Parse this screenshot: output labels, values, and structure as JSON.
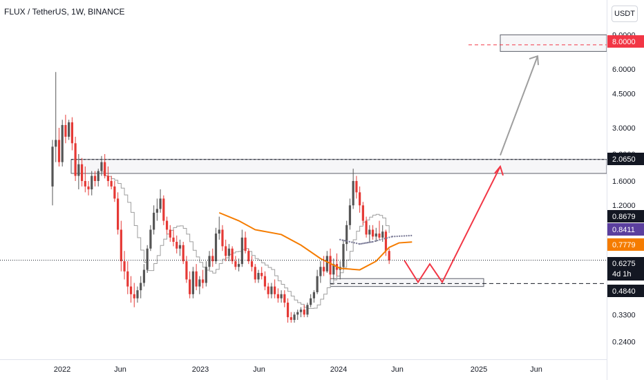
{
  "header": {
    "symbol": "FLUX / TetherUS, 1W, BINANCE"
  },
  "scale_button": "USDT",
  "colors": {
    "up": "#555555",
    "down": "#e53935",
    "ema": "#f57c00",
    "stair": "#9e9e9e",
    "dots": "#7e7e9a",
    "target": "#f23645",
    "arrow_gray": "#9e9e9e",
    "arrow_red": "#f23645",
    "tag_dark": "#131722",
    "tag_purple": "#5b3f9e",
    "tag_orange": "#f57c00",
    "tag_red": "#f23645"
  },
  "chart_data": {
    "type": "candlestick",
    "title": "FLUX / TetherUS, 1W, BINANCE",
    "y_scale": "log",
    "ylim": [
      0.2,
      10
    ],
    "y_ticks": [
      "9.0000",
      "6.0000",
      "4.5000",
      "3.0000",
      "2.2000",
      "1.6000",
      "1.2000",
      "0.3300",
      "0.2400"
    ],
    "x_ticks": [
      "2022",
      "Jun",
      "2023",
      "Jun",
      "2024",
      "Jun",
      "2025",
      "Jun"
    ],
    "price_tags": [
      {
        "label": "8.0000",
        "value": 8.0,
        "color": "#f23645"
      },
      {
        "label": "2.0650",
        "value": 2.065,
        "color": "#131722"
      },
      {
        "label": "0.8679",
        "value": 0.8679,
        "color": "#131722"
      },
      {
        "label": "0.8411",
        "value": 0.8411,
        "color": "#5b3f9e"
      },
      {
        "label": "0.7779",
        "value": 0.7779,
        "color": "#f57c00"
      },
      {
        "label": "0.6275",
        "value": 0.6275,
        "color": "#131722"
      },
      {
        "label": "0.4840",
        "value": 0.484,
        "color": "#131722"
      }
    ],
    "countdown": "4d 1h",
    "zones": [
      {
        "name": "target-zone",
        "x_start": "2024-12",
        "x_end": "end",
        "y_low": 7.4,
        "y_high": 9.0
      },
      {
        "name": "resistance-zone",
        "x_start": "2021-12",
        "x_end": "end",
        "y_low": 1.75,
        "y_high": 2.065
      },
      {
        "name": "support-zone",
        "x_start": "2023-12",
        "x_end": "2024-09",
        "y_low": 0.46,
        "y_high": 0.505
      }
    ],
    "candles_weekly": [
      [
        1.5,
        2.6,
        1.2,
        2.4
      ],
      [
        2.4,
        5.8,
        2.0,
        2.6
      ],
      [
        2.6,
        3.0,
        1.9,
        2.0
      ],
      [
        2.0,
        3.3,
        1.9,
        3.1
      ],
      [
        3.1,
        3.5,
        2.5,
        2.7
      ],
      [
        2.7,
        3.3,
        2.6,
        3.2
      ],
      [
        3.2,
        3.4,
        2.3,
        2.5
      ],
      [
        2.5,
        2.7,
        1.6,
        1.7
      ],
      [
        1.7,
        2.2,
        1.45,
        1.95
      ],
      [
        1.95,
        2.1,
        1.5,
        1.6
      ],
      [
        1.6,
        1.9,
        1.4,
        1.5
      ],
      [
        1.5,
        1.6,
        1.35,
        1.45
      ],
      [
        1.45,
        1.8,
        1.35,
        1.7
      ],
      [
        1.7,
        1.8,
        1.5,
        1.6
      ],
      [
        1.6,
        1.85,
        1.5,
        1.8
      ],
      [
        1.8,
        2.15,
        1.7,
        2.0
      ],
      [
        2.0,
        2.2,
        1.65,
        1.7
      ],
      [
        1.7,
        1.9,
        1.5,
        1.6
      ],
      [
        1.6,
        1.7,
        1.45,
        1.5
      ],
      [
        1.5,
        1.6,
        1.25,
        1.3
      ],
      [
        1.3,
        1.4,
        0.85,
        0.9
      ],
      [
        0.9,
        1.0,
        0.55,
        0.62
      ],
      [
        0.62,
        0.7,
        0.5,
        0.55
      ],
      [
        0.55,
        0.62,
        0.42,
        0.46
      ],
      [
        0.46,
        0.52,
        0.38,
        0.42
      ],
      [
        0.42,
        0.48,
        0.36,
        0.4
      ],
      [
        0.4,
        0.46,
        0.38,
        0.44
      ],
      [
        0.44,
        0.52,
        0.4,
        0.48
      ],
      [
        0.48,
        0.6,
        0.46,
        0.56
      ],
      [
        0.56,
        0.75,
        0.54,
        0.72
      ],
      [
        0.72,
        0.95,
        0.7,
        0.9
      ],
      [
        0.9,
        1.2,
        0.85,
        1.1
      ],
      [
        1.1,
        1.3,
        1.0,
        1.15
      ],
      [
        1.15,
        1.45,
        1.1,
        1.3
      ],
      [
        1.3,
        1.35,
        0.95,
        1.0
      ],
      [
        1.0,
        1.05,
        0.85,
        0.9
      ],
      [
        0.9,
        0.95,
        0.78,
        0.82
      ],
      [
        0.82,
        0.9,
        0.74,
        0.78
      ],
      [
        0.78,
        0.84,
        0.68,
        0.72
      ],
      [
        0.72,
        0.8,
        0.66,
        0.75
      ],
      [
        0.75,
        0.78,
        0.6,
        0.62
      ],
      [
        0.62,
        0.66,
        0.48,
        0.5
      ],
      [
        0.5,
        0.55,
        0.4,
        0.42
      ],
      [
        0.42,
        0.58,
        0.4,
        0.55
      ],
      [
        0.55,
        0.6,
        0.44,
        0.46
      ],
      [
        0.46,
        0.52,
        0.42,
        0.5
      ],
      [
        0.5,
        0.56,
        0.45,
        0.48
      ],
      [
        0.48,
        0.62,
        0.46,
        0.58
      ],
      [
        0.58,
        0.7,
        0.56,
        0.66
      ],
      [
        0.66,
        0.72,
        0.58,
        0.62
      ],
      [
        0.62,
        0.92,
        0.6,
        0.86
      ],
      [
        0.86,
        1.05,
        0.8,
        0.9
      ],
      [
        0.9,
        0.95,
        0.7,
        0.74
      ],
      [
        0.74,
        0.8,
        0.62,
        0.66
      ],
      [
        0.66,
        0.76,
        0.62,
        0.72
      ],
      [
        0.72,
        0.74,
        0.6,
        0.62
      ],
      [
        0.62,
        0.66,
        0.56,
        0.58
      ],
      [
        0.58,
        0.64,
        0.55,
        0.6
      ],
      [
        0.6,
        0.9,
        0.58,
        0.82
      ],
      [
        0.82,
        0.88,
        0.68,
        0.7
      ],
      [
        0.7,
        0.72,
        0.6,
        0.62
      ],
      [
        0.62,
        0.66,
        0.55,
        0.58
      ],
      [
        0.58,
        0.6,
        0.48,
        0.5
      ],
      [
        0.5,
        0.56,
        0.48,
        0.54
      ],
      [
        0.54,
        0.58,
        0.5,
        0.52
      ],
      [
        0.52,
        0.55,
        0.44,
        0.46
      ],
      [
        0.46,
        0.48,
        0.4,
        0.42
      ],
      [
        0.42,
        0.48,
        0.4,
        0.46
      ],
      [
        0.46,
        0.5,
        0.4,
        0.42
      ],
      [
        0.42,
        0.45,
        0.38,
        0.4
      ],
      [
        0.4,
        0.44,
        0.38,
        0.42
      ],
      [
        0.42,
        0.44,
        0.36,
        0.38
      ],
      [
        0.38,
        0.4,
        0.3,
        0.32
      ],
      [
        0.32,
        0.34,
        0.3,
        0.31
      ],
      [
        0.31,
        0.34,
        0.3,
        0.33
      ],
      [
        0.33,
        0.35,
        0.31,
        0.34
      ],
      [
        0.34,
        0.36,
        0.32,
        0.35
      ],
      [
        0.35,
        0.37,
        0.32,
        0.33
      ],
      [
        0.33,
        0.38,
        0.32,
        0.37
      ],
      [
        0.37,
        0.42,
        0.36,
        0.4
      ],
      [
        0.4,
        0.44,
        0.38,
        0.43
      ],
      [
        0.43,
        0.56,
        0.42,
        0.52
      ],
      [
        0.52,
        0.62,
        0.48,
        0.58
      ],
      [
        0.58,
        0.66,
        0.52,
        0.55
      ],
      [
        0.55,
        0.7,
        0.54,
        0.66
      ],
      [
        0.66,
        0.72,
        0.5,
        0.53
      ],
      [
        0.53,
        0.64,
        0.5,
        0.6
      ],
      [
        0.6,
        0.68,
        0.52,
        0.56
      ],
      [
        0.56,
        0.62,
        0.5,
        0.58
      ],
      [
        0.58,
        0.8,
        0.56,
        0.76
      ],
      [
        0.76,
        1.0,
        0.7,
        0.95
      ],
      [
        0.95,
        1.3,
        0.9,
        1.2
      ],
      [
        1.2,
        1.85,
        1.15,
        1.6
      ],
      [
        1.6,
        1.7,
        1.3,
        1.4
      ],
      [
        1.4,
        1.5,
        1.1,
        1.2
      ],
      [
        1.2,
        1.25,
        0.95,
        1.0
      ],
      [
        1.0,
        1.05,
        0.82,
        0.85
      ],
      [
        0.85,
        0.95,
        0.78,
        0.9
      ],
      [
        0.9,
        0.95,
        0.8,
        0.83
      ],
      [
        0.83,
        0.92,
        0.78,
        0.86
      ],
      [
        0.86,
        1.0,
        0.8,
        0.82
      ],
      [
        0.82,
        0.95,
        0.78,
        0.88
      ],
      [
        0.88,
        0.9,
        0.66,
        0.7
      ],
      [
        0.7,
        0.72,
        0.6,
        0.6275
      ]
    ],
    "indicators": {
      "ema": {
        "color": "#f57c00",
        "points": [
          [
            51,
            1.1
          ],
          [
            57,
            1.0
          ],
          [
            62,
            0.9
          ],
          [
            70,
            0.85
          ],
          [
            76,
            0.75
          ],
          [
            82,
            0.64
          ],
          [
            88,
            0.57
          ],
          [
            94,
            0.56
          ],
          [
            99,
            0.62
          ],
          [
            103,
            0.73
          ],
          [
            106,
            0.77
          ],
          [
            110,
            0.7779
          ]
        ]
      },
      "dotted_trail": {
        "color": "#7e7e9a",
        "points": [
          [
            88,
            0.8
          ],
          [
            94,
            0.76
          ],
          [
            98,
            0.78
          ],
          [
            104,
            0.83
          ],
          [
            110,
            0.84
          ]
        ]
      }
    },
    "projections": [
      {
        "name": "gray-target-arrow",
        "from": [
          "2024-12",
          2.065
        ],
        "to": [
          "2025-02",
          7.0
        ]
      },
      {
        "name": "red-path",
        "points": [
          [
            "2024-05",
            0.6275
          ],
          [
            "2024-06",
            0.484
          ],
          [
            "2024-07",
            0.6
          ],
          [
            "2024-08",
            0.484
          ],
          [
            "2024-12",
            1.9
          ]
        ]
      }
    ]
  }
}
